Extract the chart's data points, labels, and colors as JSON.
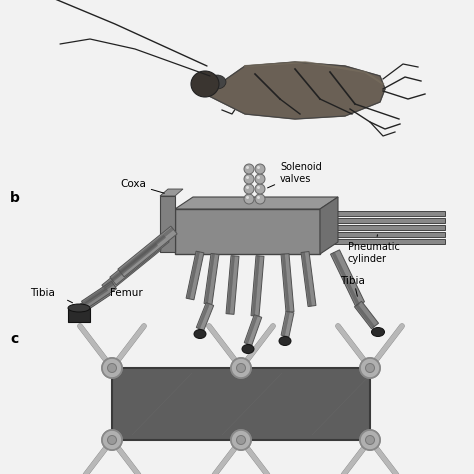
{
  "panel_bg": "#f2f2f2",
  "white": "#ffffff",
  "label_b": "b",
  "label_c": "c",
  "coxa_label": "Coxa",
  "solenoid_label": "Solenoid\nvalves",
  "pneumatic_label": "Pneumatic\ncylinder",
  "femur_label": "Femur",
  "tibia_left_label": "Tibia",
  "tibia_right_label": "Tibia",
  "dark": "#222222",
  "mid_dark": "#444444",
  "mid": "#666666",
  "mid_light": "#888888",
  "light": "#aaaaaa",
  "very_light": "#cccccc",
  "body_brown": "#555555",
  "foot_dark": "#2a2a2a",
  "chassis_dark": "#5a5a5a",
  "joint_gray": "#b0b0b0",
  "strut_gray": "#b8b8b8",
  "cockroach_body": "#6a6055",
  "cockroach_head": "#3a3530",
  "cockroach_wing": "#7a7060"
}
